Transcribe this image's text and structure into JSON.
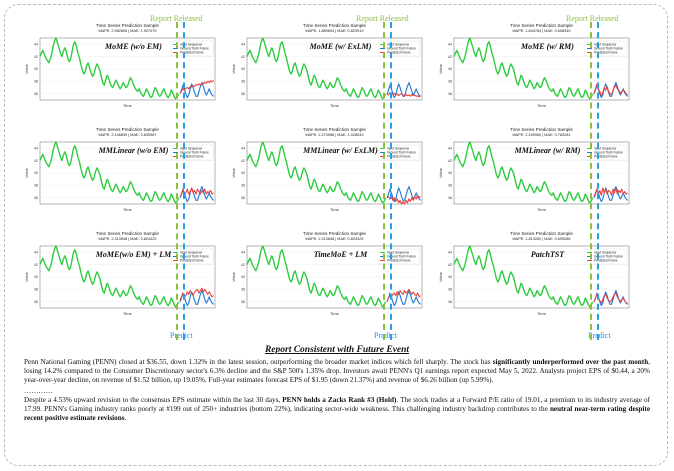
{
  "annotations": {
    "report_released": "Report Released",
    "predict": "Predict"
  },
  "panels": [
    {
      "label": "MoME (w/o EM)",
      "chart_title": "Time Series Prediction Sample",
      "metrics": "MAPE: 2.982806 | MAE: 1.907079"
    },
    {
      "label": "MoME (w/ ExLM)",
      "chart_title": "Time Series Prediction Sample",
      "metrics": "MAPE: 1.889694 | MAE: 0.823919"
    },
    {
      "label": "MoME (w/ RM)",
      "chart_title": "Time Series Prediction Sample",
      "metrics": "MAPE: 1.644784 | MAE: 0.608340"
    },
    {
      "label": "MMLinear (w/o EM)",
      "chart_title": "Time Series Prediction Sample",
      "metrics": "MAPE: 2.146839 | MAE: 0.835987"
    },
    {
      "label": "MMLinear (w/ ExLM)",
      "chart_title": "Time Series Prediction Sample",
      "metrics": "MAPE: 2.270988 | MAE: 1.028633"
    },
    {
      "label": "MMLinear (w/ RM)",
      "chart_title": "Time Series Prediction Sample",
      "metrics": "MAPE: 2.159960 | MAE: 0.783281"
    },
    {
      "label": "MoME(w/o EM) + LM",
      "chart_title": "Time Series Prediction Sample",
      "metrics": "MAPE: 2.310848 | MAE: 0.824425"
    },
    {
      "label": "TimeMoE + LM",
      "chart_title": "Time Series Prediction Sample",
      "metrics": "MAPE: 2.310848 | MAE: 0.824425"
    },
    {
      "label": "PatchTST",
      "chart_title": "Time Series Prediction Sample",
      "metrics": "MAPE: 1.813282 | MAE: 0.695086"
    }
  ],
  "chart_data": {
    "type": "line",
    "xlabel": "Time",
    "ylabel": "Value",
    "legend": [
      "Input Sequence",
      "Ground Truth Future",
      "Predicted Future"
    ],
    "legend_position": "top-right",
    "colors": {
      "input": "#2ecc40",
      "truth": "#1f77d4",
      "pred": "#e8413c",
      "released": "#8cbf3f",
      "predict": "#22a0e8"
    },
    "y_ticks": [
      "36",
      "38",
      "40",
      "42",
      "44"
    ],
    "ylim": [
      35,
      45
    ],
    "xlim": [
      0,
      120
    ],
    "input_sequence": {
      "x_start": 0,
      "values": [
        42.0,
        42.6,
        43.0,
        42.4,
        41.8,
        41.4,
        41.0,
        41.6,
        42.4,
        43.6,
        44.6,
        45.0,
        44.2,
        43.4,
        42.6,
        42.0,
        42.8,
        43.4,
        42.8,
        41.8,
        41.2,
        41.6,
        42.8,
        44.0,
        44.4,
        43.6,
        42.6,
        41.8,
        40.8,
        39.8,
        39.2,
        39.6,
        40.6,
        41.0,
        40.2,
        39.4,
        38.8,
        39.2,
        40.2,
        40.8,
        40.4,
        39.8,
        38.8,
        37.8,
        37.4,
        38.2,
        39.0,
        38.6,
        37.8,
        37.2,
        37.0,
        37.6,
        38.2,
        37.8,
        37.2,
        36.8,
        37.2,
        37.8,
        37.4,
        37.0,
        37.2,
        38.0,
        38.6,
        38.2,
        37.6,
        37.0,
        36.6,
        36.4,
        36.8,
        36.2,
        35.8,
        35.6,
        36.2,
        36.8,
        36.4,
        35.8,
        35.4,
        35.6,
        36.4,
        37.0,
        36.6,
        36.0,
        35.6,
        35.8,
        36.4,
        36.8,
        36.2,
        35.6,
        35.4,
        35.8,
        36.6,
        36.2,
        35.6,
        35.2,
        35.4,
        36.0
      ]
    },
    "ground_truth_future": {
      "x_start": 96,
      "values": [
        36.0,
        36.6,
        37.4,
        36.8,
        36.0,
        35.4,
        35.8,
        36.8,
        37.6,
        37.0,
        36.2,
        35.6,
        35.6,
        36.4,
        37.2,
        37.8,
        37.2,
        36.4,
        35.8,
        36.2,
        36.8,
        36.2,
        35.8,
        35.6
      ]
    },
    "predicted_future": [
      {
        "x_start": 96,
        "values": [
          36.2,
          36.4,
          36.8,
          36.6,
          36.9,
          37.0,
          36.8,
          37.2,
          37.1,
          37.3,
          37.2,
          37.5,
          37.4,
          37.6,
          37.4,
          37.8,
          37.6,
          37.9,
          37.7,
          38.0,
          37.8,
          38.1,
          37.9,
          38.2
        ]
      },
      {
        "x_start": 96,
        "values": [
          36.0,
          35.8,
          36.2,
          36.0,
          35.9,
          36.1,
          35.8,
          36.0,
          35.7,
          35.9,
          36.0,
          35.8,
          35.6,
          35.9,
          35.7,
          35.8,
          35.6,
          35.9,
          35.7,
          35.8,
          35.6,
          35.7,
          35.5,
          35.7
        ]
      },
      {
        "x_start": 96,
        "values": [
          36.0,
          36.8,
          37.6,
          36.6,
          36.4,
          35.6,
          36.2,
          37.0,
          36.6,
          37.2,
          36.4,
          36.0,
          35.8,
          36.6,
          37.0,
          37.4,
          36.8,
          36.6,
          36.0,
          36.4,
          36.6,
          36.4,
          36.0,
          35.8
        ]
      },
      {
        "x_start": 96,
        "values": [
          36.2,
          36.6,
          37.2,
          36.4,
          36.8,
          37.4,
          36.6,
          37.0,
          37.6,
          36.8,
          37.2,
          36.6,
          37.4,
          37.0,
          36.6,
          37.2,
          36.8,
          37.4,
          36.6,
          37.0,
          36.8,
          37.2,
          36.6,
          36.8
        ]
      },
      {
        "x_start": 96,
        "values": [
          36.0,
          36.2,
          35.8,
          36.4,
          35.6,
          36.0,
          35.4,
          35.8,
          35.2,
          35.6,
          35.0,
          35.4,
          35.0,
          35.6,
          35.2,
          35.8,
          35.4,
          36.0,
          35.6,
          36.2,
          35.8,
          36.4,
          36.0,
          36.2
        ]
      },
      {
        "x_start": 96,
        "values": [
          36.2,
          36.8,
          37.4,
          36.6,
          37.2,
          36.4,
          37.6,
          36.8,
          37.4,
          36.6,
          37.2,
          37.0,
          36.4,
          37.4,
          36.8,
          37.6,
          36.6,
          37.2,
          36.8,
          37.4,
          36.6,
          37.0,
          36.6,
          36.8
        ]
      },
      {
        "x_start": 96,
        "values": [
          36.2,
          36.8,
          37.4,
          36.8,
          37.0,
          37.6,
          37.2,
          37.8,
          37.4,
          37.0,
          37.6,
          37.8,
          38.0,
          37.4,
          37.8,
          38.2,
          37.6,
          38.0,
          37.6,
          37.2,
          37.6,
          37.2,
          36.8,
          37.0
        ]
      },
      {
        "x_start": 96,
        "values": [
          36.2,
          36.6,
          37.0,
          36.8,
          37.2,
          37.4,
          37.0,
          37.6,
          37.2,
          37.8,
          37.4,
          37.2,
          37.8,
          37.4,
          37.6,
          38.0,
          37.6,
          37.2,
          37.6,
          37.2,
          37.0,
          37.4,
          36.8,
          37.0
        ]
      },
      {
        "x_start": 96,
        "values": [
          36.0,
          36.6,
          37.2,
          36.6,
          36.2,
          35.8,
          36.4,
          37.0,
          37.2,
          36.6,
          36.2,
          36.0,
          36.2,
          36.8,
          37.2,
          37.4,
          36.8,
          36.4,
          36.0,
          36.4,
          36.6,
          36.2,
          35.8,
          35.8
        ]
      }
    ]
  },
  "report": {
    "title": "Report Consistent with Future Event",
    "p1_a": "Penn National Gaming (PENN) closed at $36.55, down 1.32% in the latest session, outperforming the broader market indices which fell sharply. The stock has ",
    "p1_b": "significantly underperformed over the past month",
    "p1_c": ", losing 14.2% compared to the Consumer Discretionary sector's 6.3% decline and the S&P 500's 1.35% drop. Investors await PENN's Q1 earnings report expected May 5, 2022. Analysts project EPS of $0.44, a 20% year-over-year decline, on revenue of $1.52 billion, up 19.05%. Full-year estimates forecast EPS of $1.95 (down 21.37%) and revenue of $6.26 billion (up 5.99%).",
    "dots": "…………",
    "p2_a": "Despite a 4.53% upward revision to the consensus EPS estimate within the last 30 days, ",
    "p2_b": "PENN holds a Zacks Rank #3 (Hold)",
    "p2_c": ". The stock trades at a Forward P/E ratio of 19.01, a premium to its industry average of 17.99. PENN's Gaming industry ranks poorly at #199 out of 250+ industries (bottom 22%), indicating sector-wide weakness. This challenging industry backdrop contributes to the ",
    "p2_d": "neutral near-term rating despite recent positive estimate revisions",
    "p2_e": "."
  }
}
